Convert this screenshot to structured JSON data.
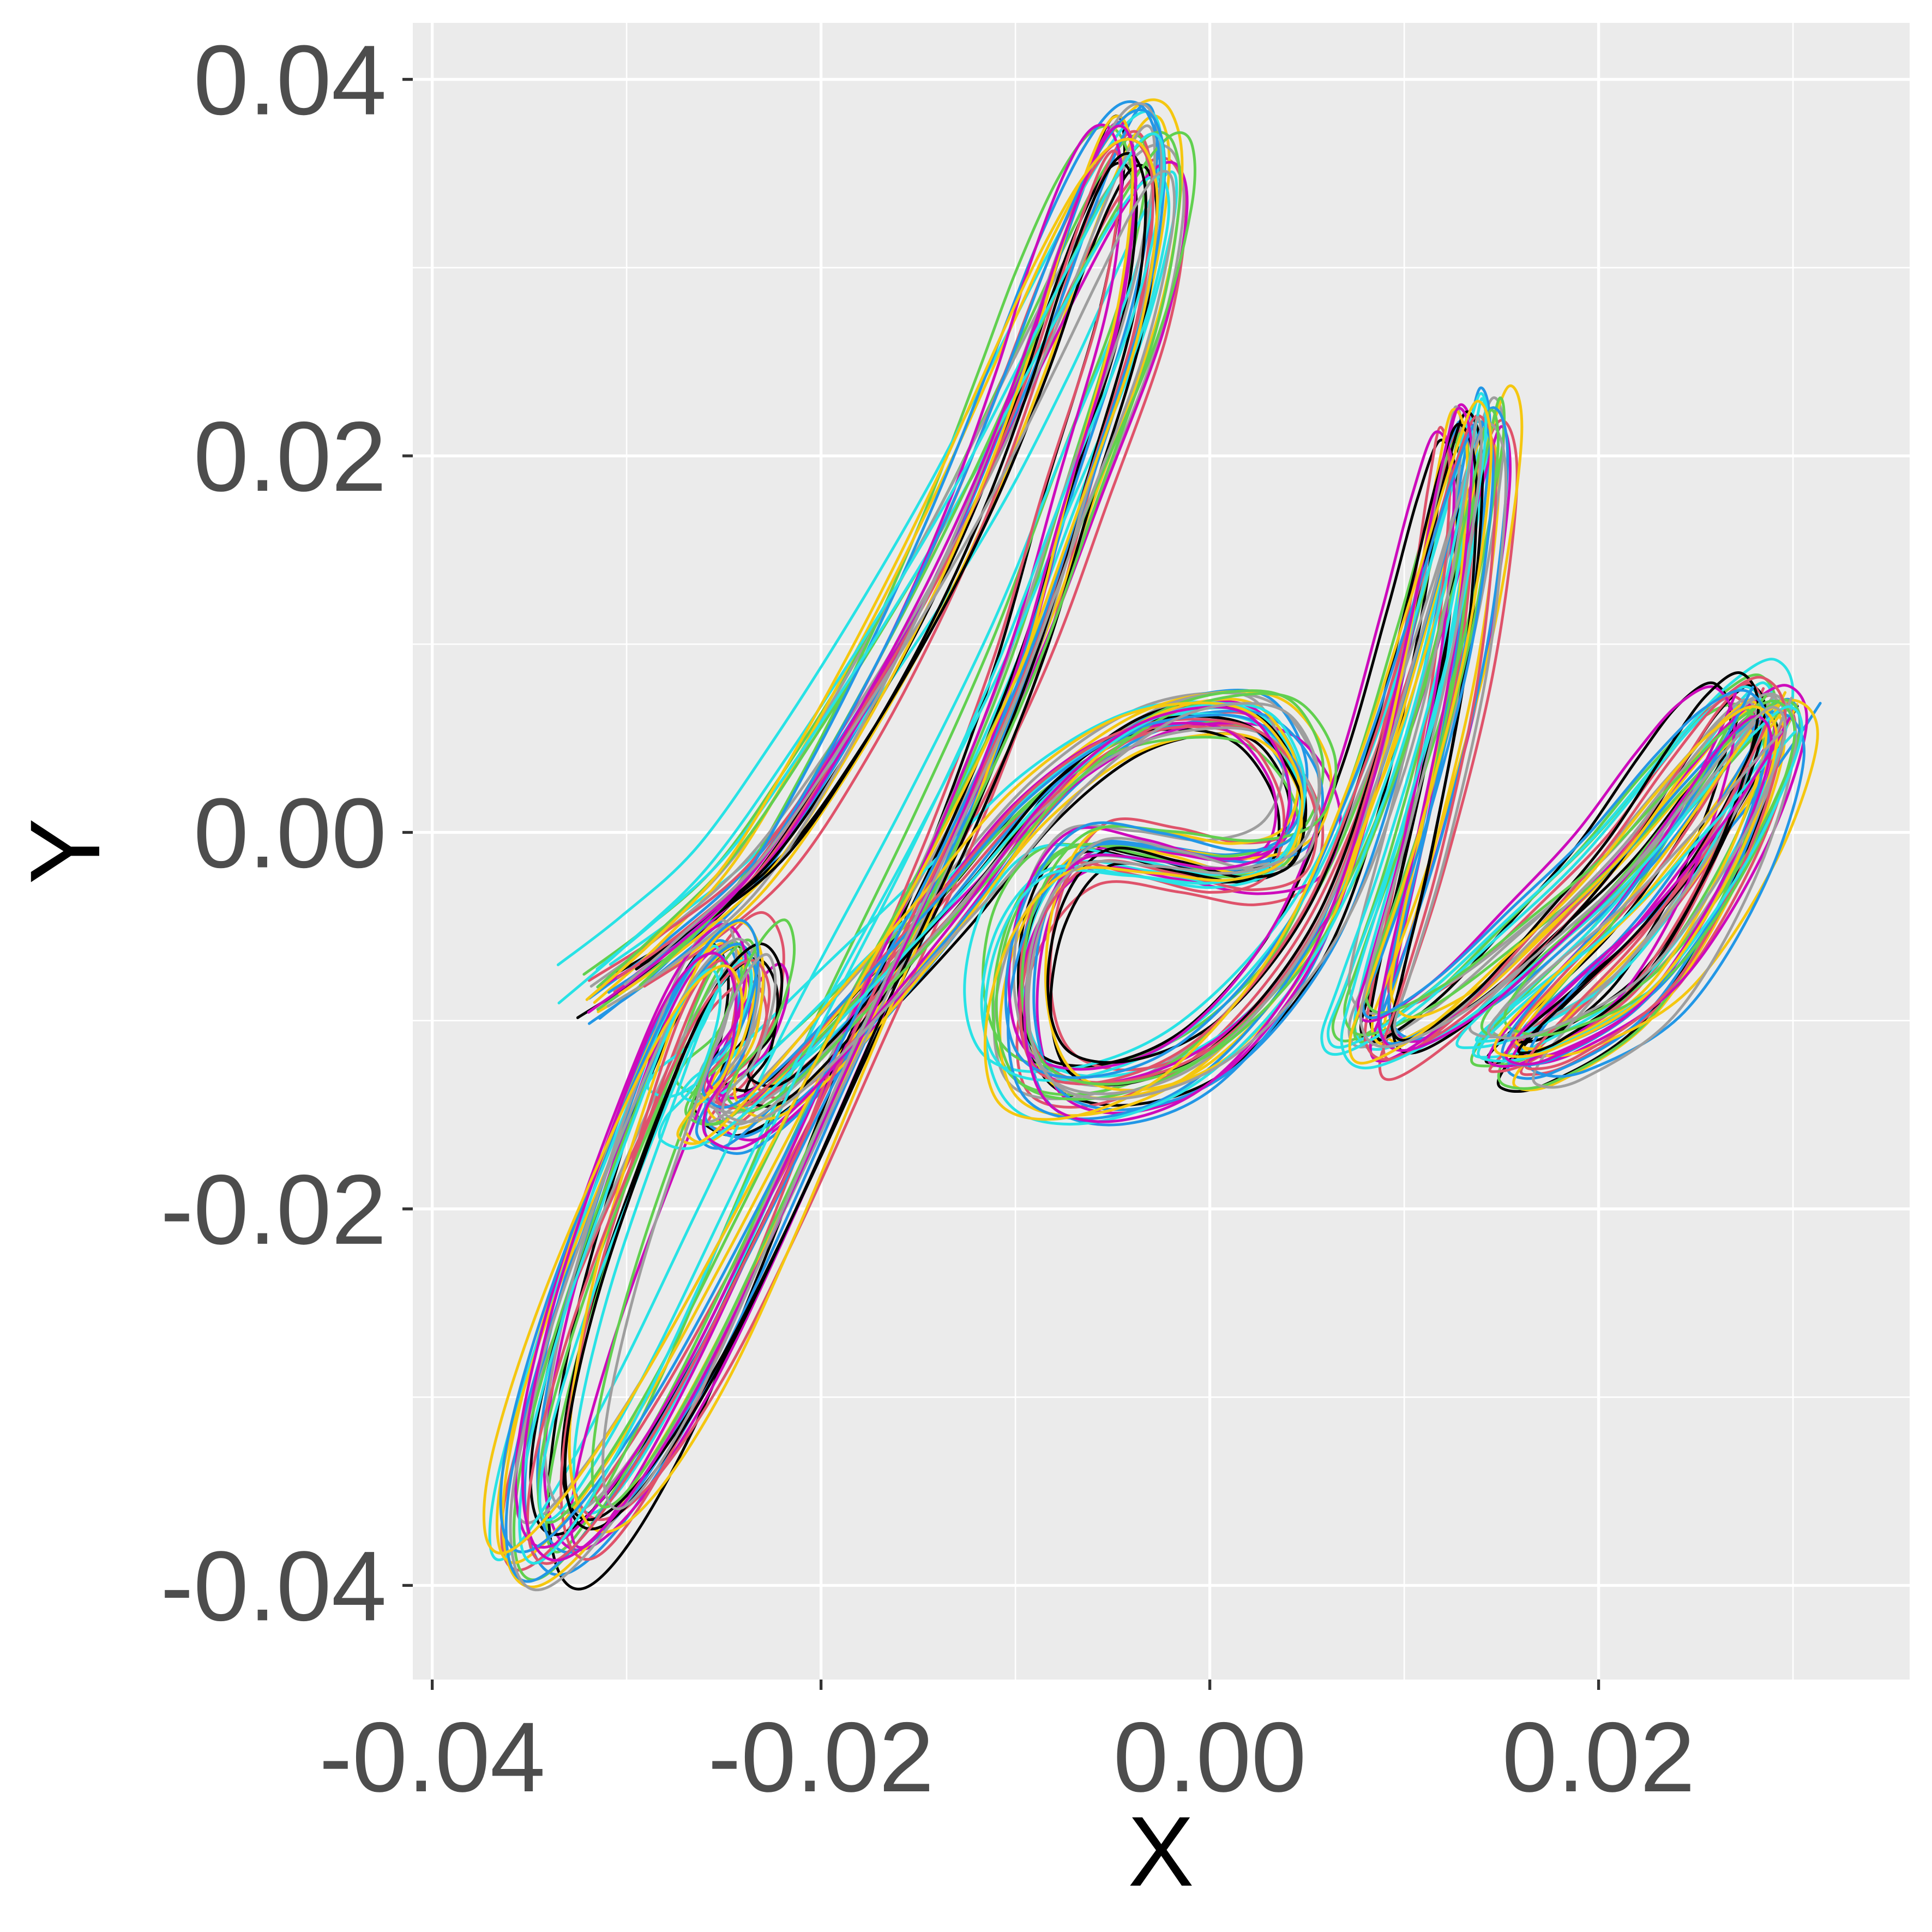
{
  "chart_data": {
    "type": "line",
    "title": "",
    "xlabel": "X",
    "ylabel": "Y",
    "xlim": [
      -0.041,
      0.036
    ],
    "ylim": [
      -0.045,
      0.043
    ],
    "x_ticks": [
      -0.04,
      -0.02,
      0.0,
      0.02
    ],
    "x_tick_labels": [
      "-0.04",
      "-0.02",
      "0.00",
      "0.02"
    ],
    "y_ticks": [
      -0.04,
      -0.02,
      0.0,
      0.02,
      0.04
    ],
    "y_tick_labels": [
      "-0.04",
      "-0.02",
      "0.00",
      "0.02",
      "0.04"
    ],
    "grid": true,
    "legend": "none",
    "palette": [
      "#000000",
      "#df536b",
      "#61d04f",
      "#2297e6",
      "#28e2e5",
      "#cd0bbc",
      "#f5c710",
      "#9e9e9e"
    ],
    "base_path": {
      "x": [
        -0.0315,
        -0.028,
        -0.024,
        -0.02,
        -0.016,
        -0.0125,
        -0.0095,
        -0.0075,
        -0.0055,
        -0.004,
        -0.003,
        -0.0028,
        -0.004,
        -0.007,
        -0.01,
        -0.014,
        -0.019,
        -0.0235,
        -0.0275,
        -0.031,
        -0.0335,
        -0.0347,
        -0.0345,
        -0.0325,
        -0.029,
        -0.0265,
        -0.0245,
        -0.0237,
        -0.0245,
        -0.026,
        -0.0262,
        -0.0245,
        -0.0215,
        -0.0175,
        -0.013,
        -0.0085,
        -0.004,
        0.0,
        0.003,
        0.0048,
        0.004,
        0.001,
        -0.003,
        -0.007,
        -0.0095,
        -0.0103,
        -0.009,
        -0.005,
        0.0,
        0.005,
        0.0085,
        0.011,
        0.0125,
        0.0135,
        0.014,
        0.0128,
        0.0105,
        0.0085,
        0.0078,
        0.009,
        0.0125,
        0.0165,
        0.0205,
        0.024,
        0.0265,
        0.0285,
        0.0292,
        0.0268,
        0.0225,
        0.0175,
        0.015,
        0.015,
        0.0175,
        0.0215,
        0.025,
        0.0275,
        0.029
      ],
      "y": [
        -0.0085,
        -0.0058,
        -0.002,
        0.004,
        0.011,
        0.018,
        0.025,
        0.03,
        0.0345,
        0.0368,
        0.0365,
        0.0335,
        0.027,
        0.018,
        0.009,
        -0.0005,
        -0.011,
        -0.021,
        -0.0295,
        -0.0355,
        -0.0382,
        -0.037,
        -0.0325,
        -0.0245,
        -0.0145,
        -0.0085,
        -0.0062,
        -0.008,
        -0.0115,
        -0.0135,
        -0.0148,
        -0.0152,
        -0.0128,
        -0.0085,
        -0.0035,
        0.0018,
        0.0052,
        0.0062,
        0.0055,
        0.0022,
        -0.0012,
        -0.0022,
        -0.0015,
        -0.0012,
        -0.0045,
        -0.0095,
        -0.0132,
        -0.0138,
        -0.0115,
        -0.0055,
        0.003,
        0.012,
        0.0185,
        0.022,
        0.019,
        0.0095,
        -0.0005,
        -0.0075,
        -0.0105,
        -0.0113,
        -0.0092,
        -0.0055,
        -0.0015,
        0.003,
        0.006,
        0.0072,
        0.0048,
        -0.0018,
        -0.0085,
        -0.0118,
        -0.0122,
        -0.0112,
        -0.0085,
        -0.0045,
        0.0,
        0.0038,
        0.0062
      ]
    },
    "n_series": 32
  }
}
